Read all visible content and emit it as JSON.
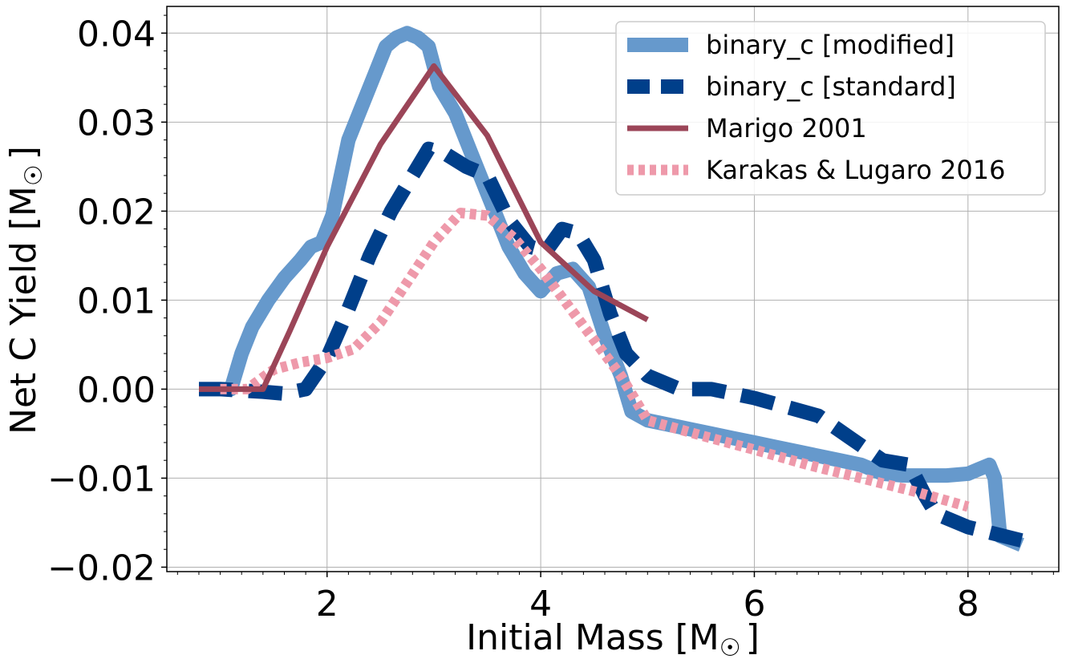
{
  "chart_data": {
    "type": "line",
    "xlabel": "Initial Mass [M",
    "xlabel_sub": "☉",
    "xlabel_end": "]",
    "ylabel": "Net C Yield [M",
    "ylabel_sub": "☉",
    "ylabel_end": "]",
    "xlim": [
      0.5,
      8.85
    ],
    "ylim": [
      -0.0205,
      0.043
    ],
    "xticks": [
      2,
      4,
      6,
      8
    ],
    "xtick_labels": [
      "2",
      "4",
      "6",
      "8"
    ],
    "yticks": [
      -0.02,
      -0.01,
      0.0,
      0.01,
      0.02,
      0.03,
      0.04
    ],
    "ytick_labels": [
      "−0.02",
      "−0.01",
      "0.00",
      "0.01",
      "0.02",
      "0.03",
      "0.04"
    ],
    "grid": true,
    "legend_position": "top-right",
    "series": [
      {
        "name": "binary_c [modified]",
        "color": "#6699cc",
        "style": "solid-thick",
        "x": [
          0.8,
          1.1,
          1.2,
          1.3,
          1.45,
          1.6,
          1.75,
          1.85,
          1.95,
          2.05,
          2.2,
          2.3,
          2.45,
          2.55,
          2.65,
          2.75,
          2.85,
          2.95,
          3.05,
          3.2,
          3.35,
          3.5,
          3.7,
          3.85,
          4.0,
          4.15,
          4.3,
          4.45,
          4.6,
          4.75,
          4.85,
          5.0,
          5.2,
          5.4,
          5.6,
          5.8,
          6.0,
          6.2,
          6.4,
          6.6,
          6.8,
          7.0,
          7.2,
          7.4,
          7.6,
          7.8,
          8.0,
          8.1,
          8.2,
          8.25,
          8.3,
          8.5
        ],
        "y": [
          0.0,
          0.0,
          0.004,
          0.007,
          0.01,
          0.0125,
          0.0145,
          0.016,
          0.0165,
          0.0195,
          0.028,
          0.031,
          0.0355,
          0.0385,
          0.0395,
          0.04,
          0.0395,
          0.0385,
          0.034,
          0.031,
          0.0265,
          0.022,
          0.016,
          0.013,
          0.011,
          0.013,
          0.0135,
          0.0115,
          0.006,
          0.0015,
          -0.0025,
          -0.0035,
          -0.004,
          -0.0045,
          -0.005,
          -0.0055,
          -0.006,
          -0.0065,
          -0.007,
          -0.0075,
          -0.008,
          -0.0085,
          -0.0095,
          -0.0097,
          -0.0097,
          -0.0097,
          -0.0095,
          -0.009,
          -0.0085,
          -0.01,
          -0.0165,
          -0.0175
        ]
      },
      {
        "name": "binary_c [standard]",
        "color": "#003f8a",
        "style": "dashed-thick",
        "x": [
          0.8,
          1.0,
          1.4,
          1.6,
          1.8,
          2.0,
          2.2,
          2.4,
          2.6,
          2.8,
          2.95,
          3.1,
          3.3,
          3.5,
          3.7,
          3.9,
          4.05,
          4.2,
          4.35,
          4.5,
          4.65,
          4.8,
          5.0,
          5.3,
          5.6,
          6.0,
          6.3,
          6.6,
          6.9,
          7.2,
          7.45,
          7.6,
          7.7,
          8.0,
          8.5
        ],
        "y": [
          0.0,
          0.0,
          -0.0003,
          -0.0005,
          0.0,
          0.0035,
          0.009,
          0.015,
          0.02,
          0.024,
          0.027,
          0.0265,
          0.025,
          0.024,
          0.019,
          0.016,
          0.0155,
          0.018,
          0.0175,
          0.0145,
          0.0085,
          0.004,
          0.0015,
          0.0,
          0.0,
          -0.001,
          -0.002,
          -0.003,
          -0.0055,
          -0.008,
          -0.0085,
          -0.012,
          -0.014,
          -0.0155,
          -0.017
        ]
      },
      {
        "name": "Marigo 2001",
        "color": "#9b4558",
        "style": "solid",
        "x": [
          0.8,
          1.4,
          1.65,
          2.0,
          2.5,
          3.0,
          3.5,
          4.0,
          4.5,
          5.0
        ],
        "y": [
          0.0,
          0.0,
          0.0065,
          0.016,
          0.0275,
          0.0363,
          0.0285,
          0.0165,
          0.011,
          0.0078
        ]
      },
      {
        "name": "Karakas & Lugaro 2016",
        "color": "#ee99aa",
        "style": "dotted-thick",
        "x": [
          1.0,
          1.25,
          1.5,
          1.75,
          2.0,
          2.25,
          2.5,
          2.75,
          3.0,
          3.25,
          3.5,
          3.75,
          4.0,
          4.25,
          4.5,
          4.75,
          5.0,
          5.5,
          6.0,
          6.5,
          7.0,
          7.5,
          8.0
        ],
        "y": [
          0.0,
          0.0,
          0.0022,
          0.003,
          0.0035,
          0.0045,
          0.0075,
          0.012,
          0.0165,
          0.0198,
          0.0195,
          0.017,
          0.0135,
          0.0095,
          0.0055,
          0.0015,
          -0.0035,
          -0.0052,
          -0.0068,
          -0.0085,
          -0.01,
          -0.0115,
          -0.0132
        ]
      }
    ]
  }
}
